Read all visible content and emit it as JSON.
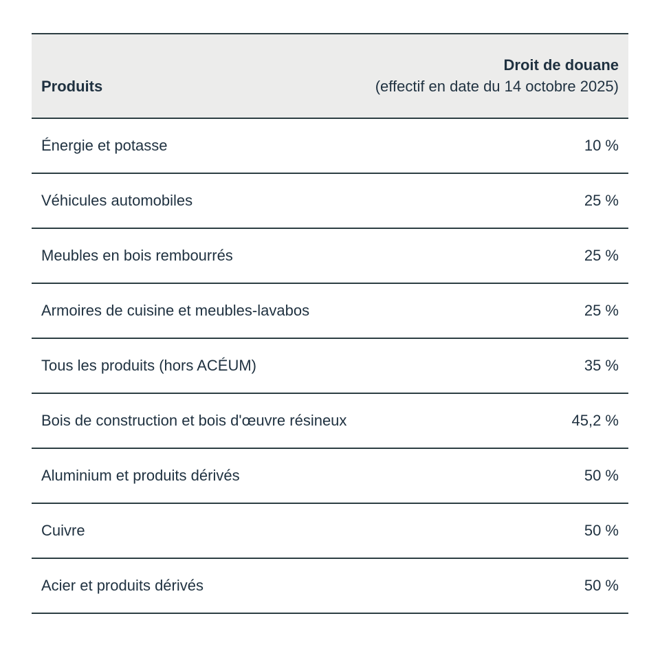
{
  "colors": {
    "text": "#1f3140",
    "border": "#2c3d42",
    "header_bg": "#ececeb",
    "page_bg": "#ffffff"
  },
  "table": {
    "header": {
      "products_label": "Produits",
      "tariff_label_line1": "Droit de douane",
      "tariff_label_line2": "(effectif en date du 14 octobre 2025)"
    },
    "rows": [
      {
        "product": "Énergie et potasse",
        "tariff": "10 %"
      },
      {
        "product": "Véhicules automobiles",
        "tariff": "25 %"
      },
      {
        "product": "Meubles en bois rembourrés",
        "tariff": "25 %"
      },
      {
        "product": "Armoires de cuisine et meubles-lavabos",
        "tariff": "25 %"
      },
      {
        "product": "Tous les produits (hors ACÉUM)",
        "tariff": "35 %"
      },
      {
        "product": "Bois de construction et bois d'œuvre résineux",
        "tariff": "45,2 %"
      },
      {
        "product": "Aluminium et produits dérivés",
        "tariff": "50 %"
      },
      {
        "product": "Cuivre",
        "tariff": "50 %"
      },
      {
        "product": "Acier et produits dérivés",
        "tariff": "50 %"
      }
    ]
  },
  "chart_data": {
    "type": "table",
    "title": "Droit de douane (effectif en date du 14 octobre 2025)",
    "columns": [
      "Produits",
      "Droit de douane (effectif en date du 14 octobre 2025)"
    ],
    "categories": [
      "Énergie et potasse",
      "Véhicules automobiles",
      "Meubles en bois rembourrés",
      "Armoires de cuisine et meubles-lavabos",
      "Tous les produits (hors ACÉUM)",
      "Bois de construction et bois d'œuvre résineux",
      "Aluminium et produits dérivés",
      "Cuivre",
      "Acier et produits dérivés"
    ],
    "values": [
      10,
      25,
      25,
      25,
      35,
      45.2,
      50,
      50,
      50
    ],
    "value_labels": [
      "10 %",
      "25 %",
      "25 %",
      "25 %",
      "35 %",
      "45,2 %",
      "50 %",
      "50 %",
      "50 %"
    ],
    "value_unit": "%"
  }
}
